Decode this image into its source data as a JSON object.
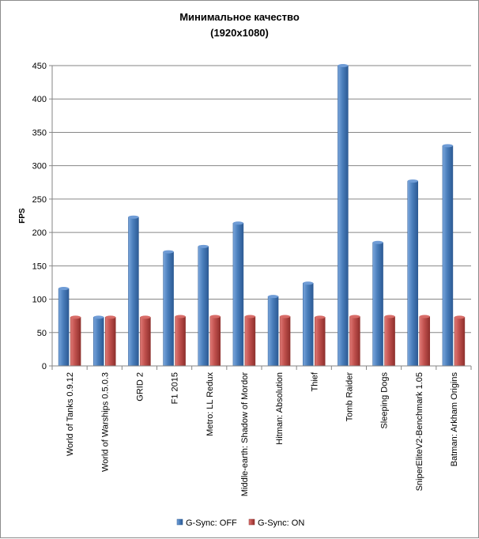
{
  "chart_data": {
    "type": "bar",
    "title": "Минимальное качество",
    "subtitle": "(1920x1080)",
    "xlabel": "",
    "ylabel": "FPS",
    "ylim": [
      0,
      450
    ],
    "yticks": [
      0,
      50,
      100,
      150,
      200,
      250,
      300,
      350,
      400,
      450
    ],
    "grid": true,
    "legend_position": "bottom",
    "categories": [
      "World of Tanks 0.9.12",
      "World of Warships 0.5.0.3",
      "GRID 2",
      "F1 2015",
      "Metro: LL Redux",
      "Middle-earth: Shadow of Mordor",
      "Hitman: Absolution",
      "Thief",
      "Tomb Raider",
      "Sleeping Dogs",
      "SniperEliteV2-Benchmark 1.05",
      "Batman: Arkham Origins"
    ],
    "series": [
      {
        "name": "G-Sync: OFF",
        "color": "#4a7ebb",
        "values": [
          116,
          73,
          223,
          171,
          179,
          214,
          104,
          124,
          450,
          185,
          277,
          330
        ]
      },
      {
        "name": "G-Sync: ON",
        "color": "#c0504d",
        "values": [
          73,
          73,
          73,
          74,
          74,
          74,
          74,
          73,
          74,
          74,
          74,
          73
        ]
      }
    ]
  }
}
